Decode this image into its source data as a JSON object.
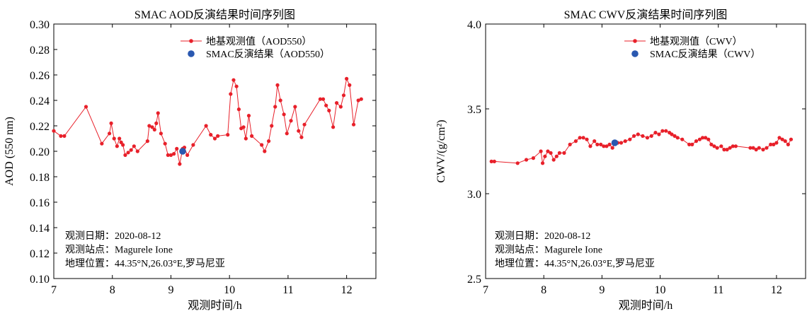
{
  "charts": [
    {
      "type": "line",
      "title": "SMAC AOD反演结果时间序列图",
      "xlabel": "观测时间/h",
      "ylabel": "AOD (550 nm)",
      "xlim": [
        7,
        12.5
      ],
      "ylim": [
        0.1,
        0.3
      ],
      "xticks": [
        7,
        8,
        9,
        10,
        11,
        12
      ],
      "yticks": [
        0.1,
        0.12,
        0.14,
        0.16,
        0.18,
        0.2,
        0.22,
        0.24,
        0.26,
        0.28,
        0.3
      ],
      "ytick_decimals": 2,
      "legend_placement": "top-right",
      "series": [
        {
          "name": "地基观测值（AOD550）",
          "color": "#e8202a",
          "marker": "circle",
          "x": [
            7.0,
            7.12,
            7.18,
            7.55,
            7.82,
            7.95,
            7.98,
            8.03,
            8.08,
            8.12,
            8.15,
            8.18,
            8.22,
            8.27,
            8.32,
            8.37,
            8.43,
            8.6,
            8.63,
            8.68,
            8.72,
            8.75,
            8.78,
            8.83,
            8.9,
            8.95,
            9.0,
            9.05,
            9.1,
            9.15,
            9.2,
            9.23,
            9.28,
            9.38,
            9.6,
            9.68,
            9.75,
            9.8,
            9.97,
            10.02,
            10.07,
            10.12,
            10.16,
            10.2,
            10.24,
            10.28,
            10.33,
            10.38,
            10.55,
            10.6,
            10.67,
            10.72,
            10.78,
            10.82,
            10.87,
            10.93,
            10.98,
            11.05,
            11.12,
            11.18,
            11.23,
            11.28,
            11.55,
            11.6,
            11.65,
            11.7,
            11.77,
            11.83,
            11.9,
            11.95,
            12.0,
            12.05,
            12.12,
            12.2,
            12.25
          ],
          "y": [
            0.216,
            0.212,
            0.212,
            0.235,
            0.206,
            0.214,
            0.222,
            0.21,
            0.204,
            0.21,
            0.207,
            0.205,
            0.197,
            0.199,
            0.201,
            0.204,
            0.2,
            0.208,
            0.22,
            0.219,
            0.217,
            0.222,
            0.23,
            0.214,
            0.206,
            0.197,
            0.197,
            0.198,
            0.202,
            0.19,
            0.202,
            0.203,
            0.197,
            0.205,
            0.22,
            0.213,
            0.21,
            0.212,
            0.213,
            0.245,
            0.256,
            0.251,
            0.233,
            0.218,
            0.219,
            0.21,
            0.228,
            0.212,
            0.205,
            0.2,
            0.208,
            0.22,
            0.235,
            0.252,
            0.24,
            0.229,
            0.214,
            0.224,
            0.235,
            0.216,
            0.211,
            0.221,
            0.241,
            0.241,
            0.236,
            0.232,
            0.219,
            0.238,
            0.235,
            0.244,
            0.257,
            0.252,
            0.221,
            0.24,
            0.241
          ]
        },
        {
          "name": "SMAC反演结果（AOD550）",
          "color": "#2a58b0",
          "marker": "big-circle",
          "x": [
            9.2
          ],
          "y": [
            0.2
          ]
        }
      ],
      "annotations": [
        "观测日期：2020-08-12",
        "观测站点：Magurele Ione",
        "地理位置：44.35°N,26.03°E,罗马尼亚"
      ]
    },
    {
      "type": "line",
      "title": "SMAC CWV反演结果时间序列图",
      "xlabel": "观测时间/h",
      "ylabel": "CWV/(g/cm²)",
      "xlim": [
        7,
        12.5
      ],
      "ylim": [
        2.5,
        4.0
      ],
      "xticks": [
        7,
        8,
        9,
        10,
        11,
        12
      ],
      "yticks": [
        2.5,
        3.0,
        3.5,
        4.0
      ],
      "ytick_decimals": 1,
      "legend_placement": "top-right",
      "series": [
        {
          "name": "地基观测值（CWV）",
          "color": "#e8202a",
          "marker": "circle",
          "x": [
            7.1,
            7.15,
            7.55,
            7.7,
            7.82,
            7.95,
            7.98,
            8.02,
            8.07,
            8.12,
            8.17,
            8.22,
            8.27,
            8.35,
            8.45,
            8.55,
            8.62,
            8.68,
            8.74,
            8.8,
            8.87,
            8.92,
            8.98,
            9.03,
            9.08,
            9.13,
            9.18,
            9.22,
            9.27,
            9.33,
            9.4,
            9.48,
            9.55,
            9.62,
            9.7,
            9.78,
            9.85,
            9.92,
            9.98,
            10.04,
            10.1,
            10.16,
            10.2,
            10.25,
            10.3,
            10.38,
            10.5,
            10.55,
            10.62,
            10.68,
            10.73,
            10.78,
            10.83,
            10.88,
            10.93,
            10.98,
            11.05,
            11.1,
            11.15,
            11.2,
            11.25,
            11.3,
            11.55,
            11.6,
            11.65,
            11.7,
            11.77,
            11.83,
            11.9,
            11.95,
            12.0,
            12.05,
            12.1,
            12.15,
            12.2,
            12.25
          ],
          "y": [
            3.19,
            3.19,
            3.18,
            3.2,
            3.21,
            3.25,
            3.18,
            3.22,
            3.25,
            3.24,
            3.2,
            3.22,
            3.24,
            3.24,
            3.29,
            3.31,
            3.33,
            3.33,
            3.32,
            3.28,
            3.31,
            3.29,
            3.29,
            3.28,
            3.28,
            3.29,
            3.27,
            3.3,
            3.3,
            3.3,
            3.31,
            3.32,
            3.34,
            3.35,
            3.34,
            3.33,
            3.34,
            3.36,
            3.35,
            3.37,
            3.37,
            3.36,
            3.35,
            3.34,
            3.33,
            3.32,
            3.29,
            3.29,
            3.31,
            3.32,
            3.33,
            3.33,
            3.32,
            3.29,
            3.28,
            3.27,
            3.28,
            3.26,
            3.26,
            3.27,
            3.28,
            3.28,
            3.27,
            3.27,
            3.26,
            3.27,
            3.26,
            3.27,
            3.29,
            3.29,
            3.3,
            3.33,
            3.32,
            3.31,
            3.29,
            3.32
          ]
        },
        {
          "name": "SMAC反演结果（CWV）",
          "color": "#2a58b0",
          "marker": "big-circle",
          "x": [
            9.22
          ],
          "y": [
            3.3
          ]
        }
      ],
      "annotations": [
        "观测日期：2020-08-12",
        "观测站点：Magurele Ione",
        "地理位置：44.35°N,26.03°E,罗马尼亚"
      ]
    }
  ]
}
